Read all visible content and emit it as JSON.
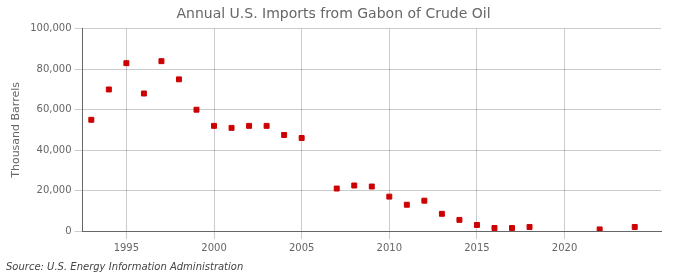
{
  "chart_data": {
    "type": "scatter",
    "title": "Annual U.S. Imports from Gabon of Crude Oil",
    "ylabel": "Thousand Barrels",
    "annotation": "Source: U.S. Energy Information Administration",
    "x": [
      1993,
      1994,
      1995,
      1996,
      1997,
      1998,
      1999,
      2000,
      2001,
      2002,
      2003,
      2004,
      2005,
      2007,
      2008,
      2009,
      2010,
      2011,
      2012,
      2013,
      2014,
      2015,
      2016,
      2017,
      2018,
      2022,
      2024
    ],
    "values": [
      55000,
      70000,
      83000,
      68000,
      84000,
      75000,
      60000,
      52000,
      51000,
      52000,
      52000,
      47500,
      46000,
      21000,
      22500,
      22000,
      17000,
      13000,
      15000,
      8500,
      5500,
      3000,
      1500,
      1500,
      2000,
      800,
      2000
    ],
    "color": "#cc0000",
    "marker": "square",
    "xlim": [
      1992.5,
      2025.5
    ],
    "xticks": [
      1995,
      2000,
      2005,
      2010,
      2015,
      2020
    ],
    "ylim": [
      0,
      100000
    ],
    "yticks": [
      0,
      {
        "value": 20000,
        "label": "20,000"
      },
      {
        "value": 40000,
        "label": "40,000"
      },
      {
        "value": 60000,
        "label": "60,000"
      },
      {
        "value": 80000,
        "label": "80,000"
      },
      {
        "value": 100000,
        "label": "100,000"
      }
    ],
    "grid": true
  }
}
